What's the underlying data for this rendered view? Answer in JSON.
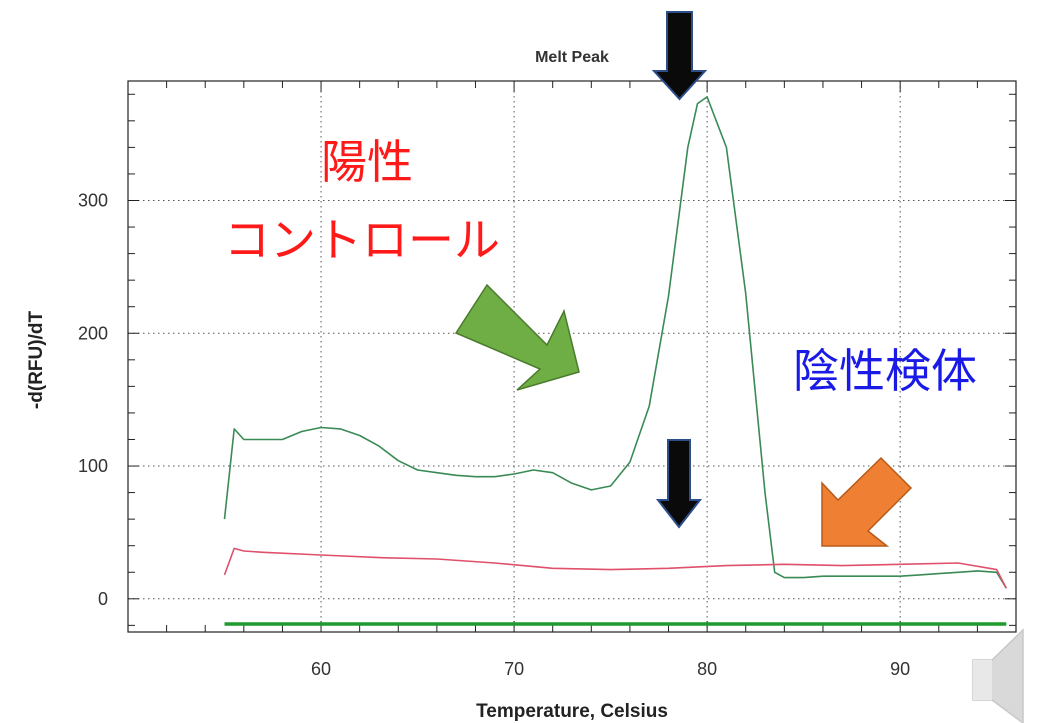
{
  "chart_data": {
    "type": "line",
    "title": "Melt Peak",
    "xlabel": "Temperature, Celsius",
    "ylabel": "-d(RFU)/dT",
    "xlim": [
      50,
      96
    ],
    "ylim": [
      -25,
      390
    ],
    "x_ticks": [
      60,
      70,
      80,
      90
    ],
    "y_ticks": [
      0,
      100,
      200,
      300
    ],
    "grid": true,
    "colors": {
      "positive": "#3a8a55",
      "negative": "#e0506a",
      "baseline": "#1e9a2e",
      "grid": "#555555",
      "arrow_green": "#6fae45",
      "arrow_orange": "#ee7f33",
      "arrow_black": "#0a0a0a"
    },
    "series": [
      {
        "key": "positive",
        "x": [
          55,
          55.5,
          56,
          57,
          58,
          59,
          60,
          61,
          62,
          63,
          64,
          65,
          66,
          67,
          68,
          69,
          70,
          71,
          72,
          73,
          74,
          75,
          76,
          77,
          78,
          79,
          79.5,
          80,
          81,
          82,
          83,
          83.5,
          84,
          85,
          86,
          87,
          88,
          89,
          90,
          91,
          92,
          93,
          94,
          95,
          95.5
        ],
        "y": [
          60,
          128,
          120,
          120,
          120,
          126,
          129,
          128,
          123,
          115,
          104,
          97,
          95,
          93,
          92,
          92,
          94,
          97,
          95,
          87,
          82,
          85,
          103,
          145,
          228,
          340,
          373,
          378,
          340,
          230,
          80,
          20,
          16,
          16,
          17,
          17,
          17,
          17,
          17,
          18,
          19,
          20,
          21,
          20,
          8
        ]
      },
      {
        "key": "negative",
        "x": [
          55,
          55.5,
          56,
          57,
          60,
          63,
          66,
          69,
          72,
          75,
          78,
          81,
          84,
          87,
          90,
          93,
          95,
          95.5
        ],
        "y": [
          18,
          38,
          36,
          35,
          33,
          31,
          30,
          27,
          23,
          22,
          23,
          25,
          26,
          25,
          26,
          27,
          22,
          8
        ]
      },
      {
        "key": "baseline",
        "x": [
          55,
          95.5
        ],
        "y": [
          -19,
          -19
        ]
      }
    ],
    "annotations": {
      "positive_control_line1": "陽性",
      "positive_control_line2": "コントロール",
      "negative_sample": "陰性検体"
    }
  }
}
